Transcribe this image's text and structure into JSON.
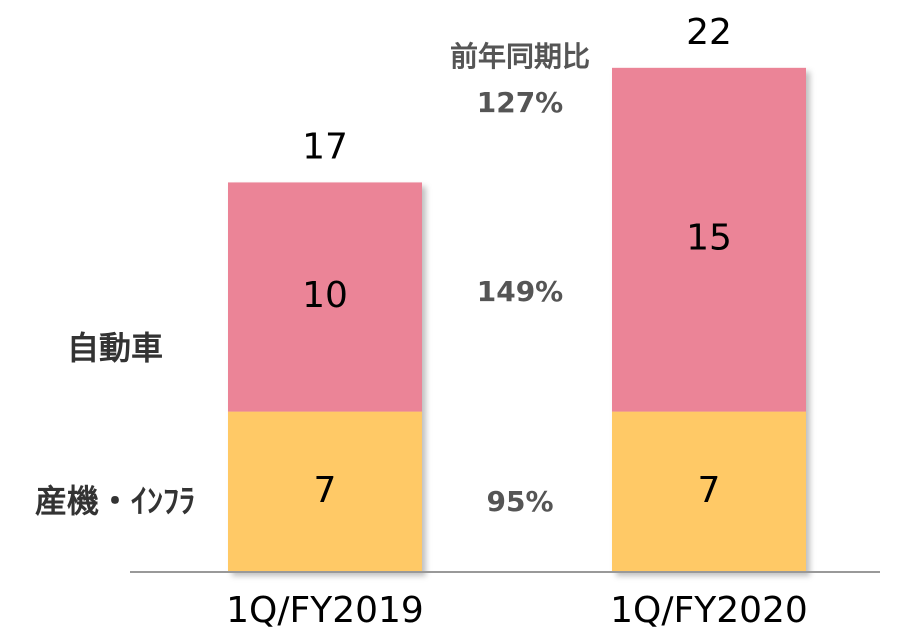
{
  "chart_data": {
    "type": "stacked_bar",
    "categories": [
      "1Q/FY2019",
      "1Q/FY2020"
    ],
    "series": [
      {
        "name": "産機・ｲﾝﾌﾗ",
        "color": "#ffc966",
        "values": [
          7,
          7
        ]
      },
      {
        "name": "自動車",
        "color": "#eb8497",
        "values": [
          10,
          15
        ]
      }
    ],
    "totals": [
      17,
      22
    ],
    "ylim": [
      0,
      24
    ],
    "annotations": {
      "title": "前年同期比",
      "total": "127%",
      "series": [
        "95%",
        "149%"
      ]
    }
  }
}
